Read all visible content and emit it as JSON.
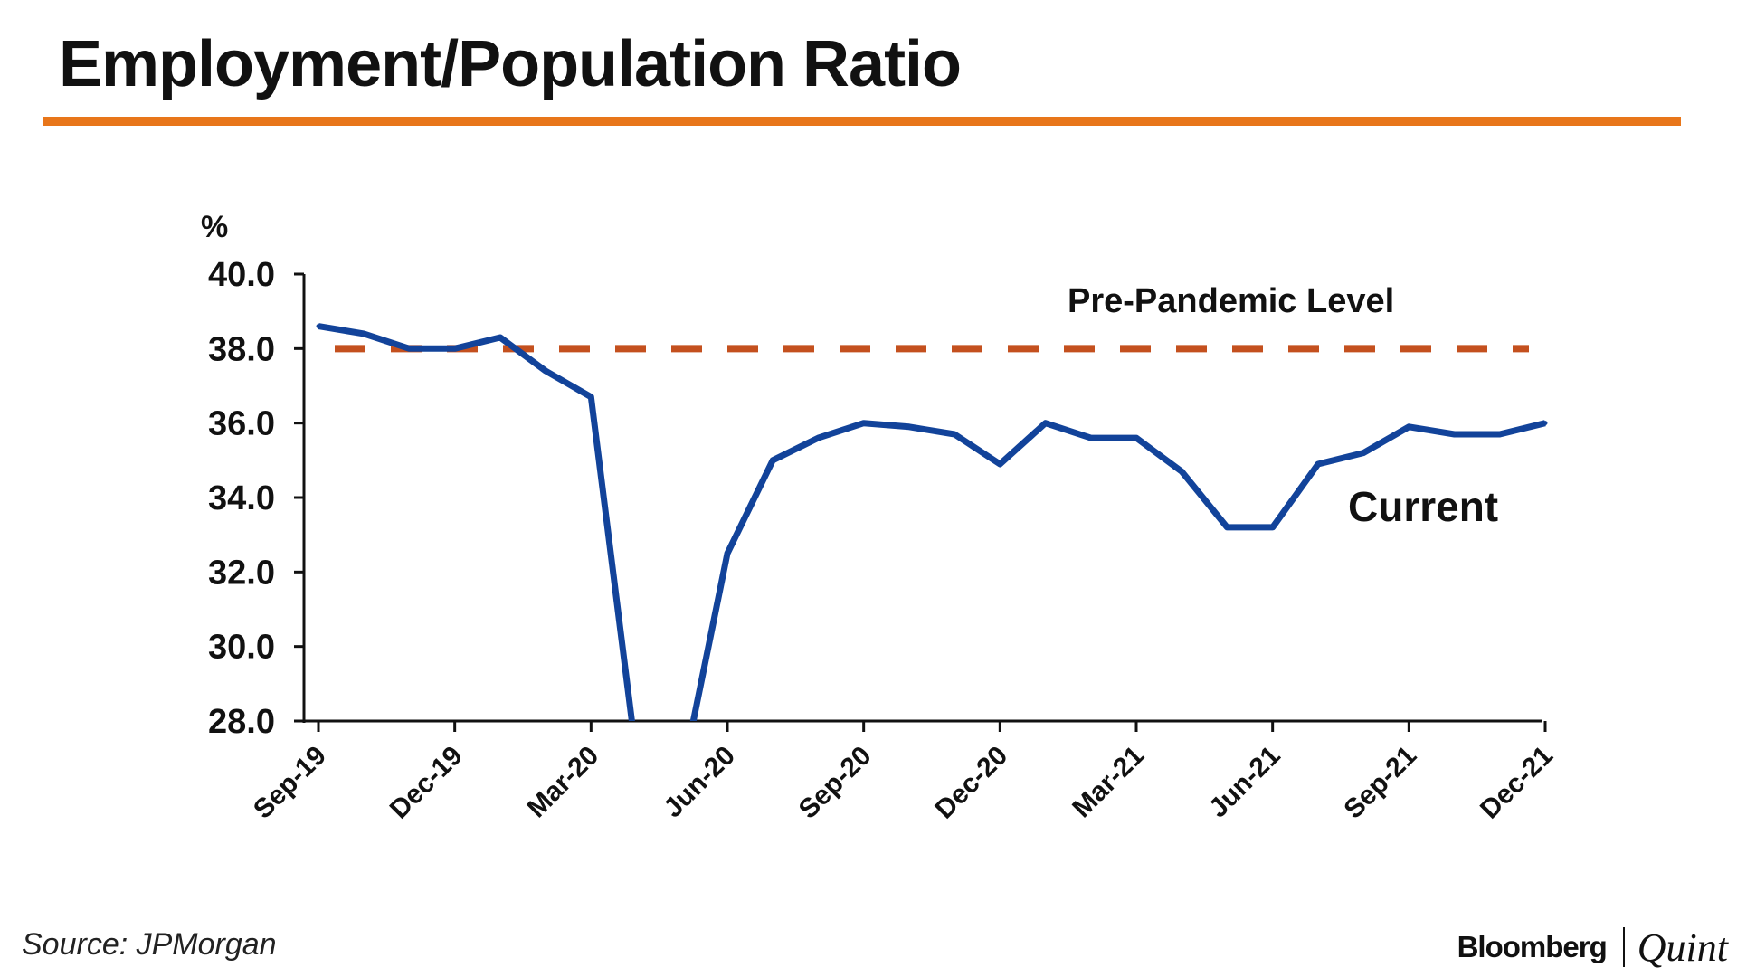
{
  "header": {
    "title": "Employment/Population Ratio"
  },
  "footer": {
    "source": "Source: JPMorgan",
    "logo_main": "Bloomberg",
    "logo_sub": "Quint"
  },
  "colors": {
    "accent": "#e8761a",
    "series": "#12439a",
    "reference": "#c4501e"
  },
  "chart_data": {
    "type": "line",
    "ylabel": "%",
    "ylim": [
      28.0,
      40.0
    ],
    "yticks": [
      "40.0",
      "38.0",
      "36.0",
      "34.0",
      "32.0",
      "30.0",
      "28.0"
    ],
    "xticks": [
      "Sep-19",
      "Dec-19",
      "Mar-20",
      "Jun-20",
      "Sep-20",
      "Dec-20",
      "Mar-21",
      "Jun-21",
      "Sep-21",
      "Dec-21"
    ],
    "x": [
      "Sep-19",
      "Oct-19",
      "Nov-19",
      "Dec-19",
      "Jan-20",
      "Feb-20",
      "Mar-20",
      "Apr-20",
      "May-20",
      "Jun-20",
      "Jul-20",
      "Aug-20",
      "Sep-20",
      "Oct-20",
      "Nov-20",
      "Dec-20",
      "Jan-21",
      "Feb-21",
      "Mar-21",
      "Apr-21",
      "May-21",
      "Jun-21",
      "Jul-21",
      "Aug-21",
      "Sep-21",
      "Oct-21",
      "Nov-21",
      "Dec-21"
    ],
    "series": [
      {
        "name": "Current",
        "values": [
          38.6,
          38.4,
          38.0,
          38.0,
          38.3,
          37.4,
          36.7,
          27.0,
          26.5,
          32.5,
          35.0,
          35.6,
          36.0,
          35.9,
          35.7,
          34.9,
          36.0,
          35.6,
          35.6,
          34.7,
          33.2,
          33.2,
          34.9,
          35.2,
          35.9,
          35.7,
          35.7,
          36.0
        ]
      }
    ],
    "reference_line": {
      "name": "Pre-Pandemic Level",
      "value": 38.0
    },
    "annotations": {
      "reference_label": "Pre-Pandemic Level",
      "series_label": "Current"
    },
    "grid": false,
    "legend": "none"
  }
}
